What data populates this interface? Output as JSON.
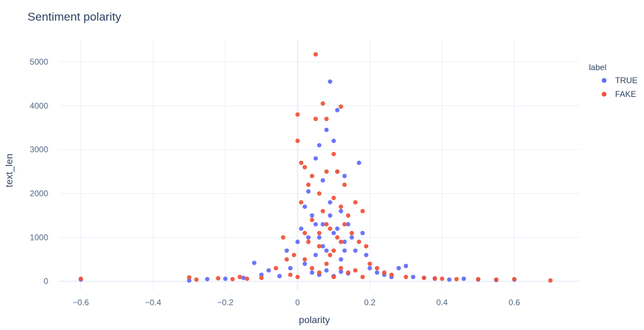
{
  "chart_data": {
    "type": "scatter",
    "title": "Sentiment polarity",
    "xlabel": "polarity",
    "ylabel": "text_len",
    "xlim": [
      -0.66,
      0.78
    ],
    "ylim": [
      -200,
      5500
    ],
    "xticks": [
      -0.6,
      -0.4,
      -0.2,
      0,
      0.2,
      0.4,
      0.6
    ],
    "xtick_labels": [
      "−0.6",
      "−0.4",
      "−0.2",
      "0",
      "0.2",
      "0.4",
      "0.6"
    ],
    "yticks": [
      0,
      1000,
      2000,
      3000,
      4000,
      5000
    ],
    "ytick_labels": [
      "0",
      "1000",
      "2000",
      "3000",
      "4000",
      "5000"
    ],
    "grid": true,
    "legend": {
      "title": "label",
      "position": "top-right"
    },
    "series": [
      {
        "name": "TRUE",
        "color": "#636efa",
        "points": [
          [
            -0.6,
            40
          ],
          [
            -0.3,
            20
          ],
          [
            -0.25,
            50
          ],
          [
            -0.2,
            60
          ],
          [
            -0.15,
            80
          ],
          [
            -0.12,
            420
          ],
          [
            -0.1,
            150
          ],
          [
            -0.08,
            250
          ],
          [
            -0.05,
            120
          ],
          [
            -0.03,
            700
          ],
          [
            -0.02,
            300
          ],
          [
            0.0,
            900
          ],
          [
            0.01,
            1200
          ],
          [
            0.02,
            1700
          ],
          [
            0.02,
            400
          ],
          [
            0.03,
            2050
          ],
          [
            0.04,
            1500
          ],
          [
            0.05,
            2800
          ],
          [
            0.05,
            600
          ],
          [
            0.06,
            3100
          ],
          [
            0.06,
            1000
          ],
          [
            0.07,
            2300
          ],
          [
            0.07,
            1300
          ],
          [
            0.08,
            3450
          ],
          [
            0.08,
            700
          ],
          [
            0.09,
            4550
          ],
          [
            0.09,
            1800
          ],
          [
            0.1,
            3200
          ],
          [
            0.1,
            1100
          ],
          [
            0.11,
            3900
          ],
          [
            0.11,
            2500
          ],
          [
            0.12,
            1600
          ],
          [
            0.12,
            500
          ],
          [
            0.13,
            2400
          ],
          [
            0.13,
            900
          ],
          [
            0.14,
            1300
          ],
          [
            0.15,
            1000
          ],
          [
            0.16,
            700
          ],
          [
            0.17,
            2700
          ],
          [
            0.18,
            1100
          ],
          [
            0.19,
            600
          ],
          [
            0.2,
            300
          ],
          [
            0.22,
            200
          ],
          [
            0.24,
            150
          ],
          [
            0.26,
            100
          ],
          [
            0.28,
            300
          ],
          [
            0.3,
            350
          ],
          [
            0.32,
            100
          ],
          [
            0.35,
            80
          ],
          [
            0.38,
            60
          ],
          [
            0.42,
            40
          ],
          [
            0.46,
            60
          ],
          [
            0.5,
            40
          ],
          [
            0.55,
            30
          ],
          [
            0.6,
            40
          ],
          [
            0.04,
            200
          ],
          [
            0.06,
            150
          ],
          [
            0.08,
            250
          ],
          [
            0.1,
            120
          ],
          [
            0.12,
            220
          ],
          [
            0.14,
            180
          ],
          [
            0.03,
            1000
          ],
          [
            0.05,
            1300
          ],
          [
            0.07,
            800
          ],
          [
            0.09,
            1500
          ],
          [
            0.11,
            1200
          ],
          [
            0.13,
            700
          ]
        ]
      },
      {
        "name": "FAKE",
        "color": "#ef553b",
        "points": [
          [
            -0.6,
            60
          ],
          [
            -0.3,
            90
          ],
          [
            -0.28,
            40
          ],
          [
            -0.22,
            70
          ],
          [
            -0.18,
            50
          ],
          [
            -0.16,
            100
          ],
          [
            -0.14,
            60
          ],
          [
            -0.1,
            80
          ],
          [
            -0.06,
            300
          ],
          [
            -0.04,
            1000
          ],
          [
            -0.03,
            500
          ],
          [
            -0.01,
            600
          ],
          [
            0.0,
            3800
          ],
          [
            0.0,
            3200
          ],
          [
            0.01,
            1800
          ],
          [
            0.01,
            2700
          ],
          [
            0.02,
            2600
          ],
          [
            0.02,
            1100
          ],
          [
            0.03,
            2200
          ],
          [
            0.03,
            900
          ],
          [
            0.04,
            2400
          ],
          [
            0.04,
            1400
          ],
          [
            0.05,
            5170
          ],
          [
            0.05,
            3700
          ],
          [
            0.06,
            2000
          ],
          [
            0.06,
            800
          ],
          [
            0.07,
            4050
          ],
          [
            0.07,
            1600
          ],
          [
            0.08,
            3700
          ],
          [
            0.08,
            2500
          ],
          [
            0.09,
            1200
          ],
          [
            0.09,
            600
          ],
          [
            0.1,
            2900
          ],
          [
            0.1,
            1900
          ],
          [
            0.11,
            2500
          ],
          [
            0.11,
            1000
          ],
          [
            0.12,
            3980
          ],
          [
            0.12,
            1700
          ],
          [
            0.13,
            2200
          ],
          [
            0.13,
            1300
          ],
          [
            0.14,
            1500
          ],
          [
            0.15,
            1100
          ],
          [
            0.16,
            1800
          ],
          [
            0.17,
            900
          ],
          [
            0.18,
            1600
          ],
          [
            0.19,
            800
          ],
          [
            0.2,
            400
          ],
          [
            0.22,
            300
          ],
          [
            0.24,
            200
          ],
          [
            0.26,
            150
          ],
          [
            0.3,
            100
          ],
          [
            0.35,
            80
          ],
          [
            0.38,
            70
          ],
          [
            0.4,
            60
          ],
          [
            0.44,
            50
          ],
          [
            0.5,
            50
          ],
          [
            0.55,
            40
          ],
          [
            0.6,
            50
          ],
          [
            0.7,
            20
          ],
          [
            0.04,
            300
          ],
          [
            0.06,
            200
          ],
          [
            0.08,
            400
          ],
          [
            0.1,
            100
          ],
          [
            0.12,
            300
          ],
          [
            0.14,
            200
          ],
          [
            0.16,
            250
          ],
          [
            0.02,
            500
          ],
          [
            0.06,
            1100
          ],
          [
            0.08,
            1300
          ],
          [
            0.1,
            700
          ],
          [
            0.12,
            900
          ],
          [
            0.0,
            100
          ],
          [
            -0.02,
            150
          ],
          [
            0.18,
            100
          ]
        ]
      }
    ]
  }
}
